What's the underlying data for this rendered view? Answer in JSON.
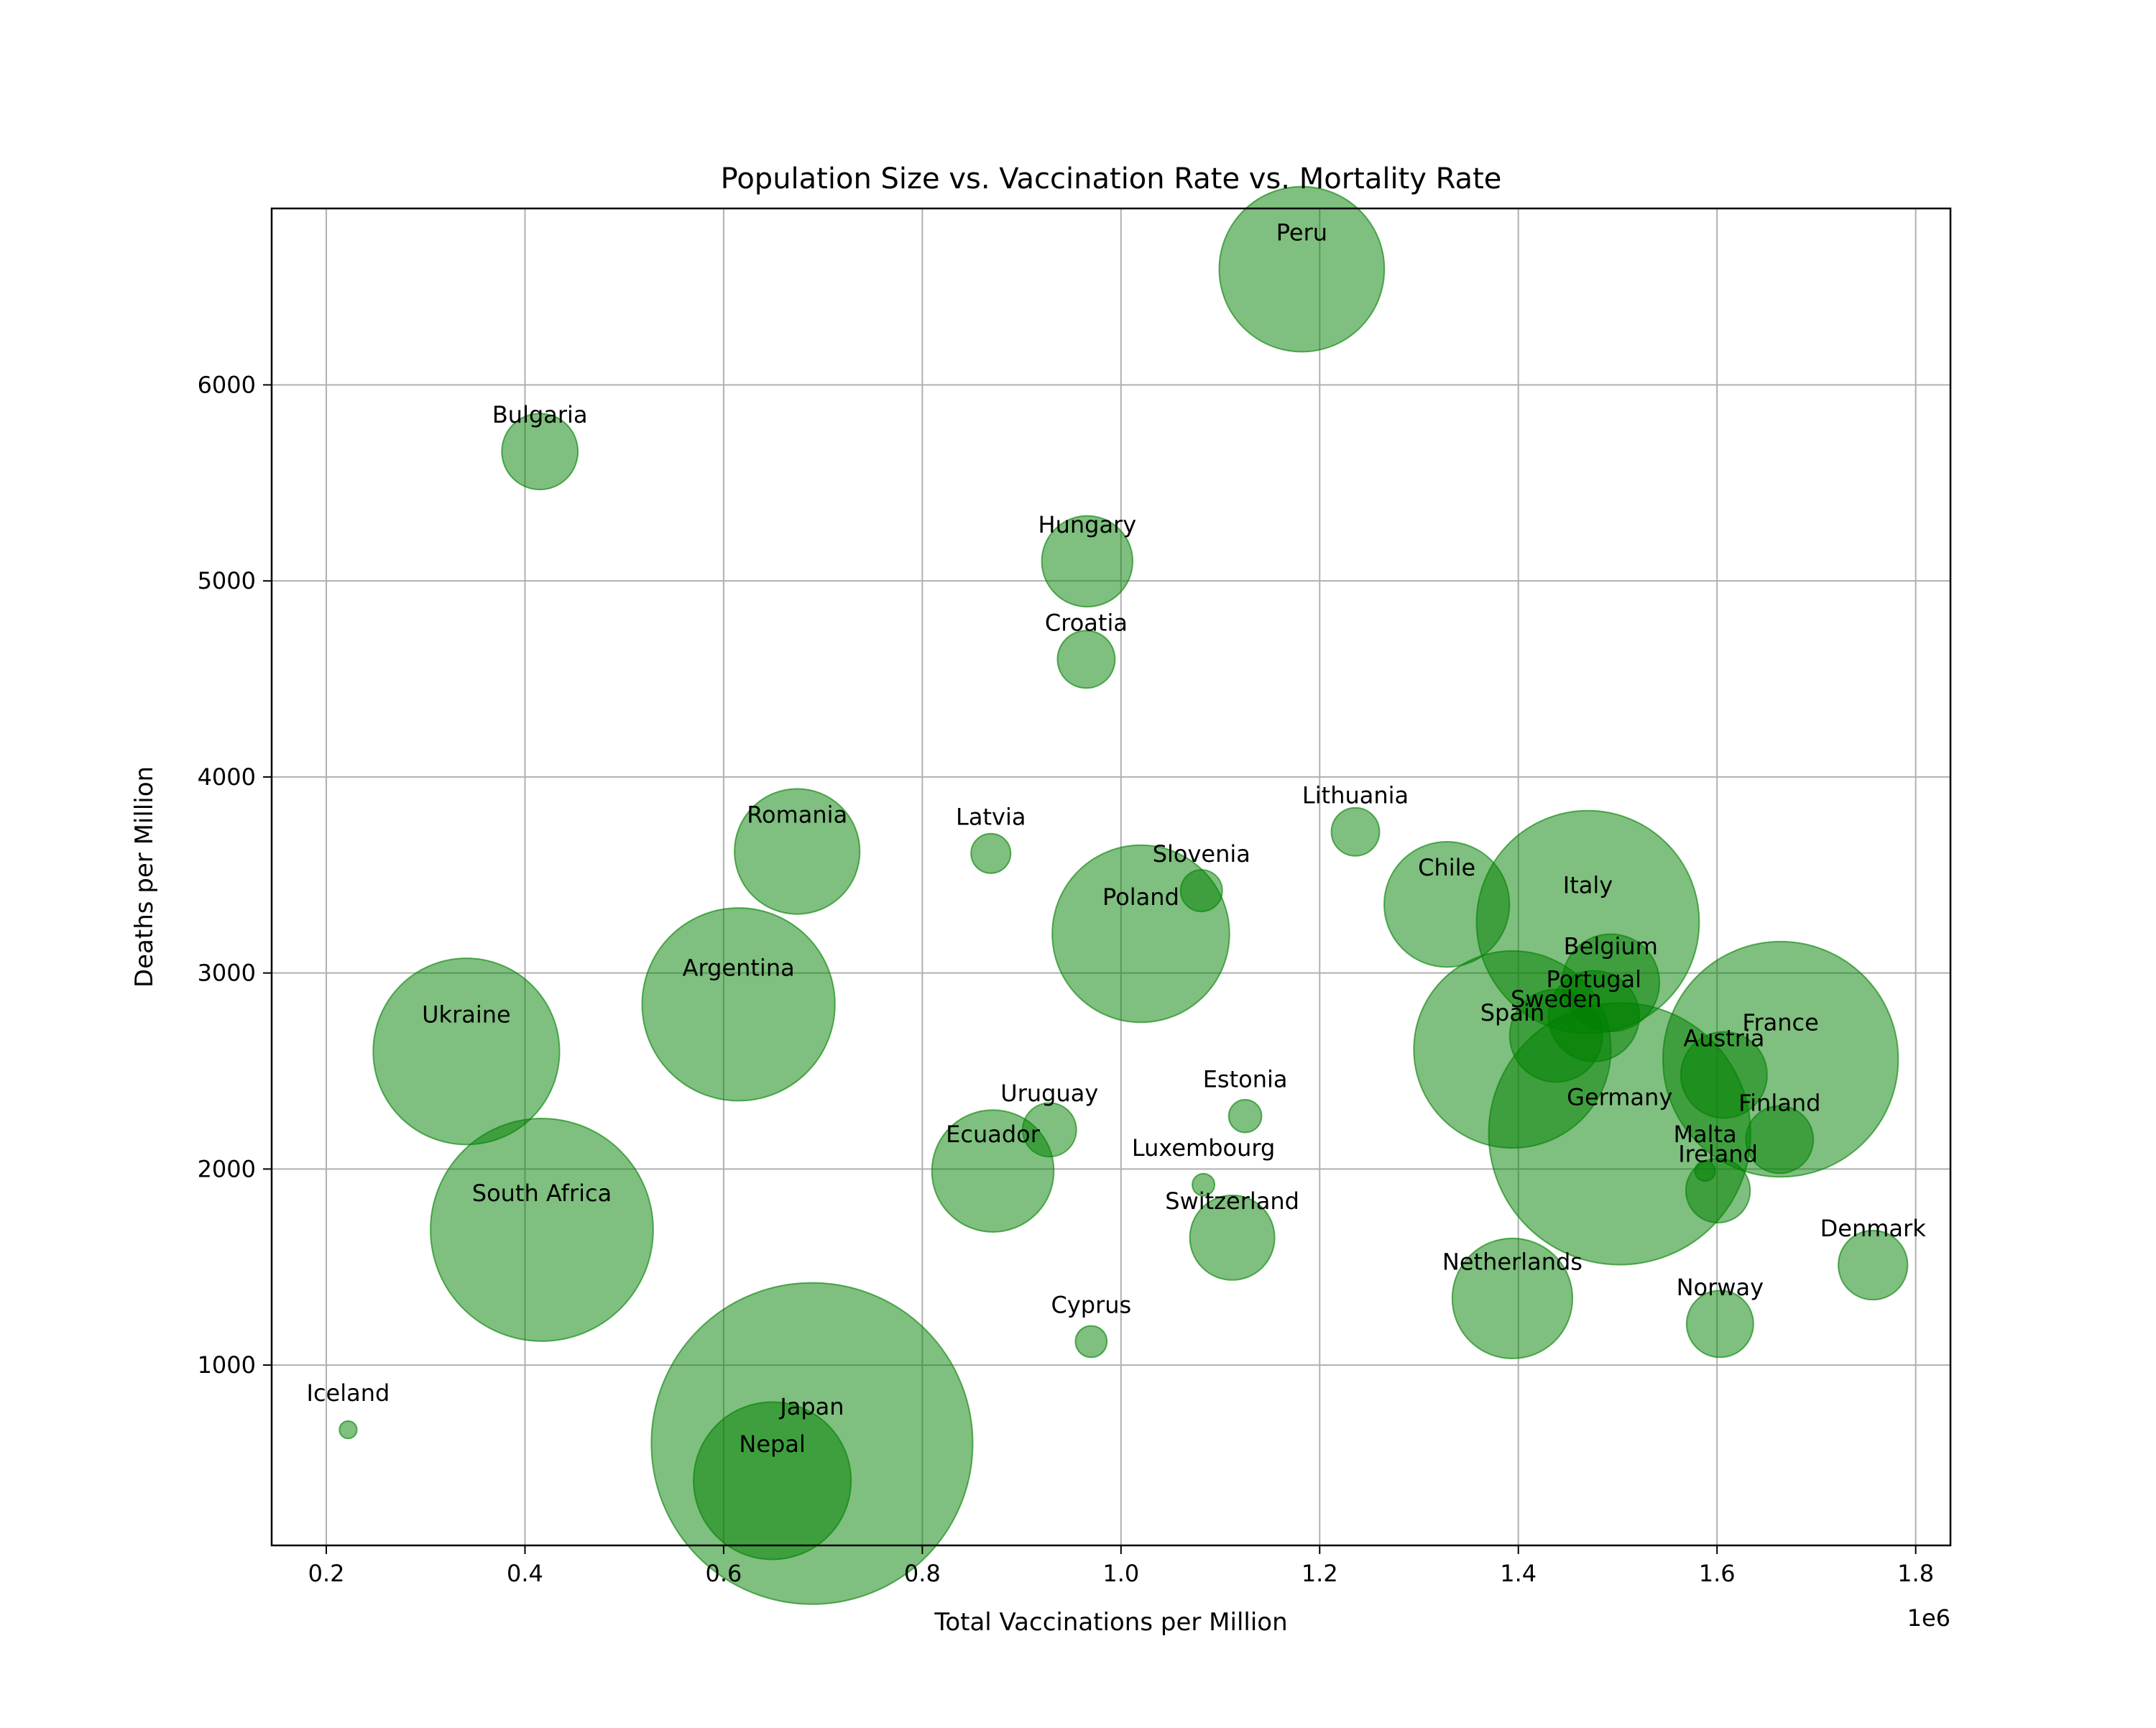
{
  "chart_data": {
    "type": "scatter",
    "title": "Population Size vs. Vaccination Rate vs. Mortality Rate",
    "xlabel": "Total Vaccinations per Million",
    "ylabel": "Deaths per Million",
    "x_offset_label": "1e6",
    "xlim": [
      145000,
      1835000
    ],
    "ylim": [
      80,
      6900
    ],
    "xticks": [
      200000,
      400000,
      600000,
      800000,
      1000000,
      1200000,
      1400000,
      1600000,
      1800000
    ],
    "xtick_labels": [
      "0.2",
      "0.4",
      "0.6",
      "0.8",
      "1.0",
      "1.2",
      "1.4",
      "1.6",
      "1.8"
    ],
    "yticks": [
      1000,
      2000,
      3000,
      4000,
      5000,
      6000
    ],
    "ytick_labels": [
      "1000",
      "2000",
      "3000",
      "4000",
      "5000",
      "6000"
    ],
    "grid": true,
    "color": "#008000",
    "size_encodes": "population",
    "points": [
      {
        "label": "Peru",
        "x": 1182000,
        "y": 6590,
        "size": 33
      },
      {
        "label": "Bulgaria",
        "x": 415000,
        "y": 5660,
        "size": 7
      },
      {
        "label": "Hungary",
        "x": 966000,
        "y": 5100,
        "size": 10
      },
      {
        "label": "Croatia",
        "x": 965000,
        "y": 4600,
        "size": 4
      },
      {
        "label": "Lithuania",
        "x": 1236000,
        "y": 3720,
        "size": 2.8
      },
      {
        "label": "Romania",
        "x": 674000,
        "y": 3620,
        "size": 19
      },
      {
        "label": "Latvia",
        "x": 869000,
        "y": 3610,
        "size": 1.9
      },
      {
        "label": "Slovenia",
        "x": 1081000,
        "y": 3420,
        "size": 2.1
      },
      {
        "label": "Chile",
        "x": 1328000,
        "y": 3350,
        "size": 19
      },
      {
        "label": "Italy",
        "x": 1470000,
        "y": 3260,
        "size": 60
      },
      {
        "label": "Poland",
        "x": 1020000,
        "y": 3200,
        "size": 38
      },
      {
        "label": "Belgium",
        "x": 1493000,
        "y": 2950,
        "size": 11.5
      },
      {
        "label": "Argentina",
        "x": 615000,
        "y": 2840,
        "size": 45
      },
      {
        "label": "Portugal",
        "x": 1476000,
        "y": 2780,
        "size": 10
      },
      {
        "label": "Sweden",
        "x": 1438000,
        "y": 2680,
        "size": 10.4
      },
      {
        "label": "Spain",
        "x": 1394000,
        "y": 2610,
        "size": 47
      },
      {
        "label": "Ukraine",
        "x": 341000,
        "y": 2600,
        "size": 42
      },
      {
        "label": "France",
        "x": 1664000,
        "y": 2560,
        "size": 67
      },
      {
        "label": "Austria",
        "x": 1607000,
        "y": 2480,
        "size": 9
      },
      {
        "label": "Estonia",
        "x": 1125000,
        "y": 2270,
        "size": 1.3
      },
      {
        "label": "Uruguay",
        "x": 928000,
        "y": 2200,
        "size": 3.5
      },
      {
        "label": "Germany",
        "x": 1502000,
        "y": 2180,
        "size": 83
      },
      {
        "label": "Finland",
        "x": 1663000,
        "y": 2150,
        "size": 5.5
      },
      {
        "label": "Ecuador",
        "x": 871000,
        "y": 1990,
        "size": 18
      },
      {
        "label": "Malta",
        "x": 1588000,
        "y": 1990,
        "size": 0.5
      },
      {
        "label": "Luxembourg",
        "x": 1083000,
        "y": 1920,
        "size": 0.6
      },
      {
        "label": "Ireland",
        "x": 1601000,
        "y": 1890,
        "size": 5
      },
      {
        "label": "South Africa",
        "x": 417000,
        "y": 1690,
        "size": 60
      },
      {
        "label": "Switzerland",
        "x": 1112000,
        "y": 1650,
        "size": 8.7
      },
      {
        "label": "Denmark",
        "x": 1757000,
        "y": 1510,
        "size": 5.8
      },
      {
        "label": "Netherlands",
        "x": 1394000,
        "y": 1340,
        "size": 17.5
      },
      {
        "label": "Norway",
        "x": 1603000,
        "y": 1210,
        "size": 5.4
      },
      {
        "label": "Cyprus",
        "x": 970000,
        "y": 1120,
        "size": 1.2
      },
      {
        "label": "Iceland",
        "x": 222000,
        "y": 670,
        "size": 0.37
      },
      {
        "label": "Japan",
        "x": 689000,
        "y": 600,
        "size": 125
      },
      {
        "label": "Nepal",
        "x": 649000,
        "y": 410,
        "size": 30
      }
    ]
  }
}
